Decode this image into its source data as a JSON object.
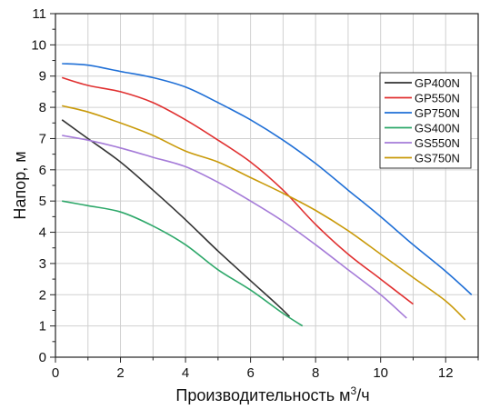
{
  "chart_data": {
    "type": "line",
    "xlabel_main": "Производительность м",
    "xlabel_sup": "3",
    "xlabel_tail": "/ч",
    "ylabel": "Напор, м",
    "xlim": [
      0,
      13
    ],
    "ylim": [
      0,
      11
    ],
    "x_ticks": [
      0,
      2,
      4,
      6,
      8,
      10,
      12
    ],
    "y_ticks": [
      0,
      1,
      2,
      3,
      4,
      5,
      6,
      7,
      8,
      9,
      10,
      11
    ],
    "grid": true,
    "legend_position": "top-right",
    "series": [
      {
        "name": "GP400N",
        "color": "#333333",
        "points": [
          [
            0.2,
            7.6
          ],
          [
            1,
            7.0
          ],
          [
            2,
            6.25
          ],
          [
            3,
            5.35
          ],
          [
            4,
            4.4
          ],
          [
            5,
            3.4
          ],
          [
            6,
            2.45
          ],
          [
            6.8,
            1.7
          ],
          [
            7.2,
            1.3
          ]
        ]
      },
      {
        "name": "GP550N",
        "color": "#e03030",
        "points": [
          [
            0.2,
            8.95
          ],
          [
            1,
            8.7
          ],
          [
            2,
            8.5
          ],
          [
            3,
            8.15
          ],
          [
            4,
            7.6
          ],
          [
            5,
            6.95
          ],
          [
            6,
            6.25
          ],
          [
            7,
            5.35
          ],
          [
            8,
            4.25
          ],
          [
            9,
            3.3
          ],
          [
            10,
            2.5
          ],
          [
            11,
            1.7
          ]
        ]
      },
      {
        "name": "GP750N",
        "color": "#1f6fd6",
        "points": [
          [
            0.2,
            9.4
          ],
          [
            1,
            9.35
          ],
          [
            2,
            9.15
          ],
          [
            3,
            8.95
          ],
          [
            4,
            8.65
          ],
          [
            5,
            8.15
          ],
          [
            6,
            7.6
          ],
          [
            7,
            6.95
          ],
          [
            8,
            6.2
          ],
          [
            9,
            5.35
          ],
          [
            10,
            4.5
          ],
          [
            11,
            3.6
          ],
          [
            12,
            2.75
          ],
          [
            12.8,
            2.0
          ]
        ]
      },
      {
        "name": "GS400N",
        "color": "#2ea86a",
        "points": [
          [
            0.2,
            5.0
          ],
          [
            1,
            4.85
          ],
          [
            2,
            4.65
          ],
          [
            3,
            4.2
          ],
          [
            4,
            3.6
          ],
          [
            5,
            2.8
          ],
          [
            6,
            2.15
          ],
          [
            7,
            1.4
          ],
          [
            7.6,
            1.0
          ]
        ]
      },
      {
        "name": "GS550N",
        "color": "#a57bd8",
        "points": [
          [
            0.2,
            7.1
          ],
          [
            1,
            6.95
          ],
          [
            2,
            6.7
          ],
          [
            3,
            6.4
          ],
          [
            4,
            6.1
          ],
          [
            5,
            5.6
          ],
          [
            6,
            5.0
          ],
          [
            7,
            4.35
          ],
          [
            8,
            3.6
          ],
          [
            9,
            2.8
          ],
          [
            10,
            2.0
          ],
          [
            10.8,
            1.25
          ]
        ]
      },
      {
        "name": "GS750N",
        "color": "#c99a0a",
        "points": [
          [
            0.2,
            8.05
          ],
          [
            1,
            7.85
          ],
          [
            2,
            7.5
          ],
          [
            3,
            7.1
          ],
          [
            4,
            6.6
          ],
          [
            5,
            6.25
          ],
          [
            6,
            5.75
          ],
          [
            7,
            5.25
          ],
          [
            8,
            4.7
          ],
          [
            9,
            4.05
          ],
          [
            10,
            3.3
          ],
          [
            11,
            2.55
          ],
          [
            12,
            1.8
          ],
          [
            12.6,
            1.2
          ]
        ]
      }
    ]
  }
}
